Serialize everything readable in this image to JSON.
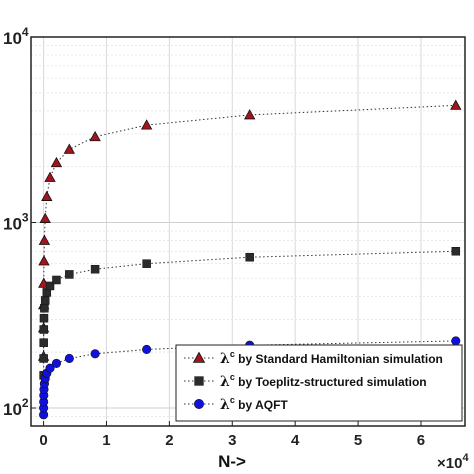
{
  "chart_data": {
    "type": "scatter",
    "xlabel": "N->",
    "x_multiplier_label": "×10",
    "x_multiplier_exp": "4",
    "xlim": [
      -0.2,
      6.7
    ],
    "ylim": [
      80,
      10000
    ],
    "yscale": "log",
    "grid": true,
    "legend_position": "bottom-right",
    "x_ticks": [
      0,
      1,
      2,
      3,
      4,
      5,
      6
    ],
    "x_tick_labels": [
      "0",
      "1",
      "2",
      "3",
      "4",
      "5",
      "6"
    ],
    "y_ticks": [
      100,
      1000,
      10000
    ],
    "y_tick_bases": [
      "10",
      "10",
      "10"
    ],
    "y_tick_exps": [
      "2",
      "3",
      "4"
    ],
    "legend_lambda": "λ",
    "legend_sup": "c",
    "series": [
      {
        "label": "by Standard Hamiltonian simulation",
        "marker": "triangle",
        "color": "#a3141f",
        "line_style": "dotted",
        "points": [
          [
            0.0004,
            190
          ],
          [
            0.0008,
            270
          ],
          [
            0.0016,
            360
          ],
          [
            0.0032,
            470
          ],
          [
            0.0064,
            620
          ],
          [
            0.0128,
            800
          ],
          [
            0.0256,
            1050
          ],
          [
            0.0512,
            1380
          ],
          [
            0.1024,
            1750
          ],
          [
            0.2048,
            2100
          ],
          [
            0.4096,
            2480
          ],
          [
            0.8192,
            2900
          ],
          [
            1.6384,
            3350
          ],
          [
            3.2768,
            3800
          ],
          [
            6.5536,
            4280
          ]
        ]
      },
      {
        "label": "by Toeplitz-structured simulation",
        "marker": "square",
        "color": "#2b2b2b",
        "line_style": "dotted",
        "points": [
          [
            0.0004,
            150
          ],
          [
            0.0008,
            185
          ],
          [
            0.0016,
            225
          ],
          [
            0.0032,
            265
          ],
          [
            0.0064,
            305
          ],
          [
            0.0128,
            345
          ],
          [
            0.0256,
            380
          ],
          [
            0.0512,
            420
          ],
          [
            0.1024,
            455
          ],
          [
            0.2048,
            490
          ],
          [
            0.4096,
            525
          ],
          [
            0.8192,
            560
          ],
          [
            1.6384,
            600
          ],
          [
            3.2768,
            650
          ],
          [
            6.5536,
            700
          ]
        ]
      },
      {
        "label": "by AQFT",
        "marker": "circle",
        "color": "#1111dd",
        "line_style": "dotted",
        "points": [
          [
            0.0004,
            92
          ],
          [
            0.0008,
            100
          ],
          [
            0.0016,
            108
          ],
          [
            0.0032,
            117
          ],
          [
            0.0064,
            126
          ],
          [
            0.0128,
            135
          ],
          [
            0.0256,
            144
          ],
          [
            0.0512,
            154
          ],
          [
            0.1024,
            164
          ],
          [
            0.2048,
            174
          ],
          [
            0.4096,
            185
          ],
          [
            0.8192,
            196
          ],
          [
            1.6384,
            207
          ],
          [
            3.2768,
            218
          ],
          [
            6.5536,
            230
          ]
        ]
      }
    ]
  }
}
